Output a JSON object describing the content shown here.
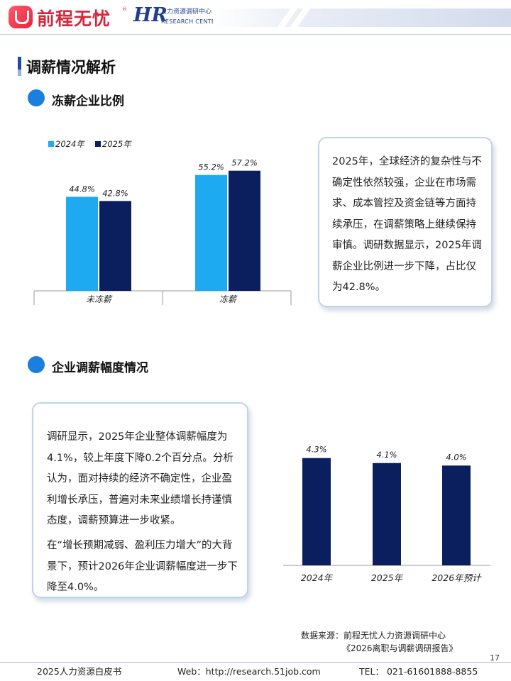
{
  "header": {
    "logo_text": "前程无忧",
    "logo_reg": "®",
    "hr_mark": "HR",
    "hr_cn": "人力资源调研中心",
    "hr_en": "RESEARCH CENTER"
  },
  "section_title": "调薪情况解析",
  "freeze": {
    "title": "冻薪企业比例",
    "text": "2025年，全球经济的复杂性与不确定性依然较强，企业在市场需求、成本管控及资金链等方面持续承压，在调薪策略上继续保持审慎。调研数据显示，2025年调薪企业比例进一步下降，占比仅为42.8%。"
  },
  "raise": {
    "title": "企业调薪幅度情况",
    "para1": "调研显示，2025年企业整体调薪幅度为4.1%，较上年度下降0.2个百分点。分析认为，面对持续的经济不确定性，企业盈利增长承压，普遍对未来业绩增长持谨慎态度，调薪预算进一步收紧。",
    "para2": "在“增长预期减弱、盈利压力增大”的大背景下，预计2026年企业调薪幅度进一步下降至4.0%。"
  },
  "chart_data": [
    {
      "type": "bar",
      "categories": [
        "未冻薪",
        "冻薪"
      ],
      "series": [
        {
          "name": "2024年",
          "values": [
            44.8,
            55.2
          ],
          "labels": [
            "44.8%",
            "55.2%"
          ],
          "color": "#1eaaf0"
        },
        {
          "name": "2025年",
          "values": [
            42.8,
            57.2
          ],
          "labels": [
            "42.8%",
            "57.2%"
          ],
          "color": "#0b1f5e"
        }
      ],
      "ylim": [
        0,
        75
      ],
      "legend": "top-left"
    },
    {
      "type": "bar",
      "categories": [
        "2024年",
        "2025年",
        "2026年预计"
      ],
      "values": [
        4.3,
        4.1,
        4.0
      ],
      "labels": [
        "4.3%",
        "4.1%",
        "4.0%"
      ],
      "color": "#0b1f5e",
      "ylim": [
        0,
        5.6
      ]
    }
  ],
  "source": {
    "line1": "数据来源：前程无忧人力资源调研中心",
    "line2": "《2026离职与调薪调研报告》"
  },
  "page_number": "17",
  "footer": {
    "left": "2025人力资源白皮书",
    "web": "Web：http://research.51job.com",
    "tel": "TEL： 021-61601888-8855"
  },
  "colors": {
    "accent": "#1c7fe0",
    "brand_red": "#d6263b",
    "navy": "#0b1f5e",
    "cyan": "#1eaaf0"
  }
}
